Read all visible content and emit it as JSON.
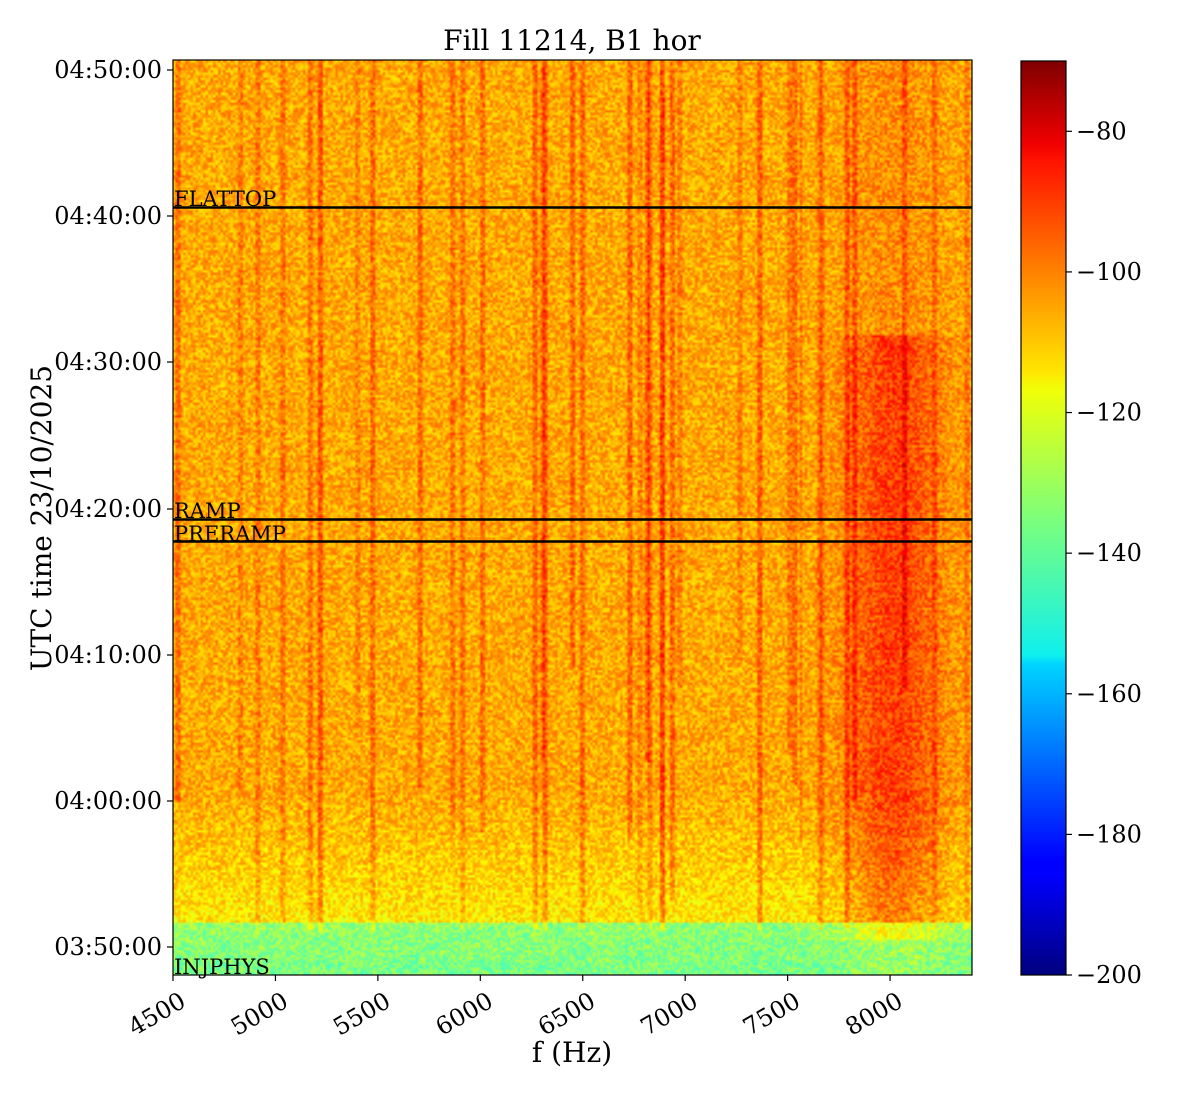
{
  "chart_data": {
    "type": "heatmap",
    "title": "Fill 11214, B1 hor",
    "xlabel": "f (Hz)",
    "ylabel": "UTC time 23/10/2025",
    "xlim": [
      4500,
      8400
    ],
    "ylim_seconds_of_day": [
      13680,
      17460
    ],
    "x_ticks": [
      {
        "value": 4500,
        "label": "4500"
      },
      {
        "value": 5000,
        "label": "5000"
      },
      {
        "value": 5500,
        "label": "5500"
      },
      {
        "value": 6000,
        "label": "6000"
      },
      {
        "value": 6500,
        "label": "6500"
      },
      {
        "value": 7000,
        "label": "7000"
      },
      {
        "value": 7500,
        "label": "7500"
      },
      {
        "value": 8000,
        "label": "8000"
      }
    ],
    "y_ticks": [
      {
        "label": "03:50:00"
      },
      {
        "label": "04:00:00"
      },
      {
        "label": "04:10:00"
      },
      {
        "label": "04:20:00"
      },
      {
        "label": "04:30:00"
      },
      {
        "label": "04:40:00"
      },
      {
        "label": "04:50:00"
      }
    ],
    "colorbar": {
      "colormap": "jet",
      "vmin": -200,
      "vmax": -70,
      "ticks": [
        {
          "value": -80,
          "label": "−80"
        },
        {
          "value": -100,
          "label": "−100"
        },
        {
          "value": -120,
          "label": "−120"
        },
        {
          "value": -140,
          "label": "−140"
        },
        {
          "value": -160,
          "label": "−160"
        },
        {
          "value": -180,
          "label": "−180"
        },
        {
          "value": -200,
          "label": "−200"
        }
      ]
    },
    "phase_markers": [
      {
        "label": "INJPHYS",
        "time": "03:48:10"
      },
      {
        "label": "PRERAMP",
        "time": "04:17:40"
      },
      {
        "label": "RAMP",
        "time": "04:19:10"
      },
      {
        "label": "FLATTOP",
        "time": "04:40:30"
      }
    ]
  }
}
